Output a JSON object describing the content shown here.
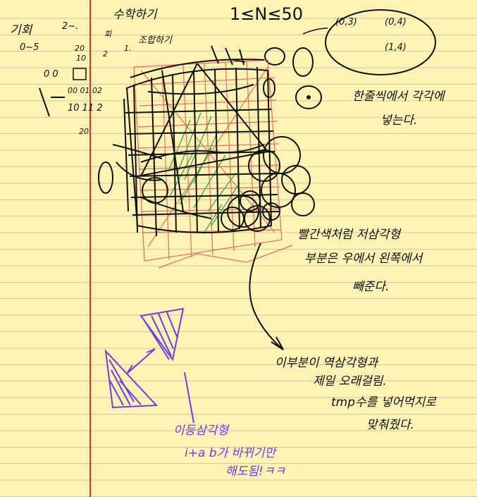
{
  "top_row": {
    "label_left": "기회",
    "range_left": "0~5",
    "label_mid": "2~.",
    "title": "수학하기",
    "formula": "1≤N≤50",
    "note_combination": "조합하기",
    "note_count": "회"
  },
  "bubble": {
    "coords": [
      "(0,3)",
      "(0,4)",
      "(1,4)"
    ]
  },
  "index_grid": {
    "row1": "0 0",
    "row2": "00 01 02",
    "row3": "10 11 2",
    "row4": "20",
    "small_a": "20",
    "small_b": "10",
    "small_c": "2",
    "small_d": "1."
  },
  "annotations": {
    "note1_line1": "한줄씩에서 각각에",
    "note1_line2": "넣는다.",
    "note2_line1": "빨간색처럼 저삼각형",
    "note2_line2": "부분은 우에서 왼쪽에서",
    "note2_line3": "빼준다.",
    "note3_line1": "이부분이 역삼각형과",
    "note3_line2": "제일 오래걸림.",
    "note3_line3": "tmp수를 넣어먹지로",
    "note3_line4": "맞춰줬다.",
    "purple_line1": "이등삼각형",
    "purple_line2": "i+a  b가 바뀌기만",
    "purple_line3": "해도됨!ㅋㅋ"
  },
  "colors": {
    "paper": "#fdf3b4",
    "rule_line": "#cfc8a4",
    "margin": "#c9372c",
    "ink": "#111111",
    "purple": "#6b3fe0",
    "red_pen": "#e05a50",
    "green_pen": "#3aa04a"
  }
}
